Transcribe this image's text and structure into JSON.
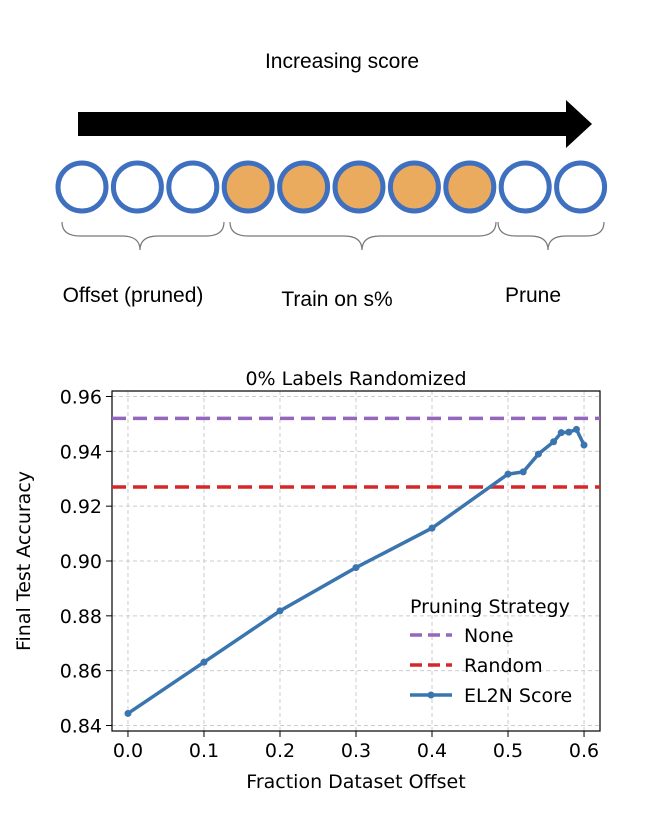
{
  "diagram": {
    "title": "Increasing score",
    "labels": [
      "Offset (pruned)",
      "Train on s%",
      "Prune"
    ]
  },
  "chart_data": {
    "type": "line",
    "title": "0% Labels Randomized",
    "x_label": "Fraction Dataset Offset",
    "y_label": "Final Test Accuracy",
    "xlim": [
      -0.021,
      0.621
    ],
    "ylim": [
      0.838,
      0.962
    ],
    "xticks": [
      {
        "value": 0,
        "label": "0.0"
      },
      0.1,
      0.2,
      0.3,
      0.4,
      0.5,
      0.6
    ],
    "yticks": [
      0.84,
      0.86,
      0.88,
      {
        "value": 0.9,
        "label": "0.90"
      },
      0.92,
      0.94,
      0.96
    ],
    "grid": true,
    "legend_title": "Pruning Strategy",
    "legend_position": "lower right",
    "series": [
      {
        "name": "None",
        "color": "#9467bd",
        "line_style": "dashed",
        "values": [
          0.952
        ]
      },
      {
        "name": "Random",
        "color": "#d62728",
        "line_style": "dashed",
        "values": [
          0.927
        ]
      },
      {
        "name": "EL2N Score",
        "color": "#3a75b0",
        "line_style": "solid",
        "markers": true,
        "x": [
          0,
          0.1,
          0.2,
          0.3,
          0.4,
          0.5,
          0.52,
          0.54,
          0.56,
          0.57,
          0.58,
          0.59,
          0.6
        ],
        "values": [
          0.8444,
          0.8631,
          0.8818,
          0.8976,
          0.912,
          0.9317,
          0.9325,
          0.939,
          0.9435,
          0.9468,
          0.947,
          0.948,
          0.9423
        ]
      }
    ]
  }
}
